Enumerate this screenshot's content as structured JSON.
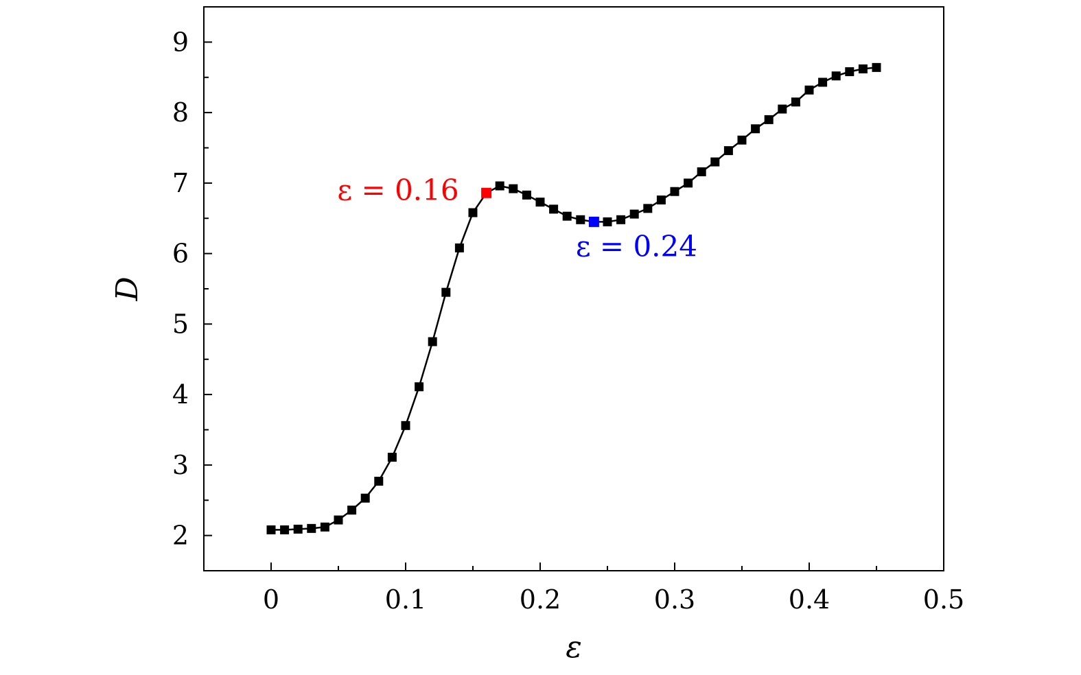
{
  "chart_data": {
    "type": "line",
    "title": "",
    "xlabel": "ε",
    "ylabel": "D",
    "xlim": [
      -0.05,
      0.5
    ],
    "ylim": [
      1.5,
      9.5
    ],
    "x_ticks": [
      0,
      0.1,
      0.2,
      0.3,
      0.4,
      0.5
    ],
    "x_tick_labels": [
      "0",
      "0.1",
      "0.2",
      "0.3",
      "0.4",
      "0.5"
    ],
    "y_ticks": [
      2,
      3,
      4,
      5,
      6,
      7,
      8,
      9
    ],
    "y_tick_labels": [
      "2",
      "3",
      "4",
      "5",
      "6",
      "7",
      "8",
      "9"
    ],
    "grid": false,
    "legend": "none",
    "series": [
      {
        "color": "#000000",
        "marker": "square",
        "x": [
          0,
          0.01,
          0.02,
          0.03,
          0.04,
          0.05,
          0.06,
          0.07,
          0.08,
          0.09,
          0.1,
          0.11,
          0.12,
          0.13,
          0.14,
          0.15,
          0.16,
          0.17,
          0.18,
          0.19,
          0.2,
          0.21,
          0.22,
          0.23,
          0.24,
          0.25,
          0.26,
          0.27,
          0.28,
          0.29,
          0.3,
          0.31,
          0.32,
          0.33,
          0.34,
          0.35,
          0.36,
          0.37,
          0.38,
          0.39,
          0.4,
          0.41,
          0.42,
          0.43,
          0.44,
          0.45
        ],
        "y": [
          2.08,
          2.08,
          2.09,
          2.1,
          2.12,
          2.22,
          2.36,
          2.53,
          2.77,
          3.11,
          3.56,
          4.11,
          4.75,
          5.45,
          6.08,
          6.58,
          6.86,
          6.96,
          6.92,
          6.83,
          6.73,
          6.63,
          6.53,
          6.48,
          6.45,
          6.45,
          6.48,
          6.56,
          6.64,
          6.76,
          6.88,
          7.0,
          7.16,
          7.3,
          7.46,
          7.61,
          7.77,
          7.9,
          8.05,
          8.15,
          8.32,
          8.43,
          8.52,
          8.58,
          8.62,
          8.64
        ]
      }
    ],
    "highlights": [
      {
        "x": 0.16,
        "y": 6.86,
        "color": "#ff0000",
        "label": "ε = 0.16"
      },
      {
        "x": 0.24,
        "y": 6.45,
        "color": "#0000ff",
        "label": "ε = 0.24"
      }
    ]
  }
}
